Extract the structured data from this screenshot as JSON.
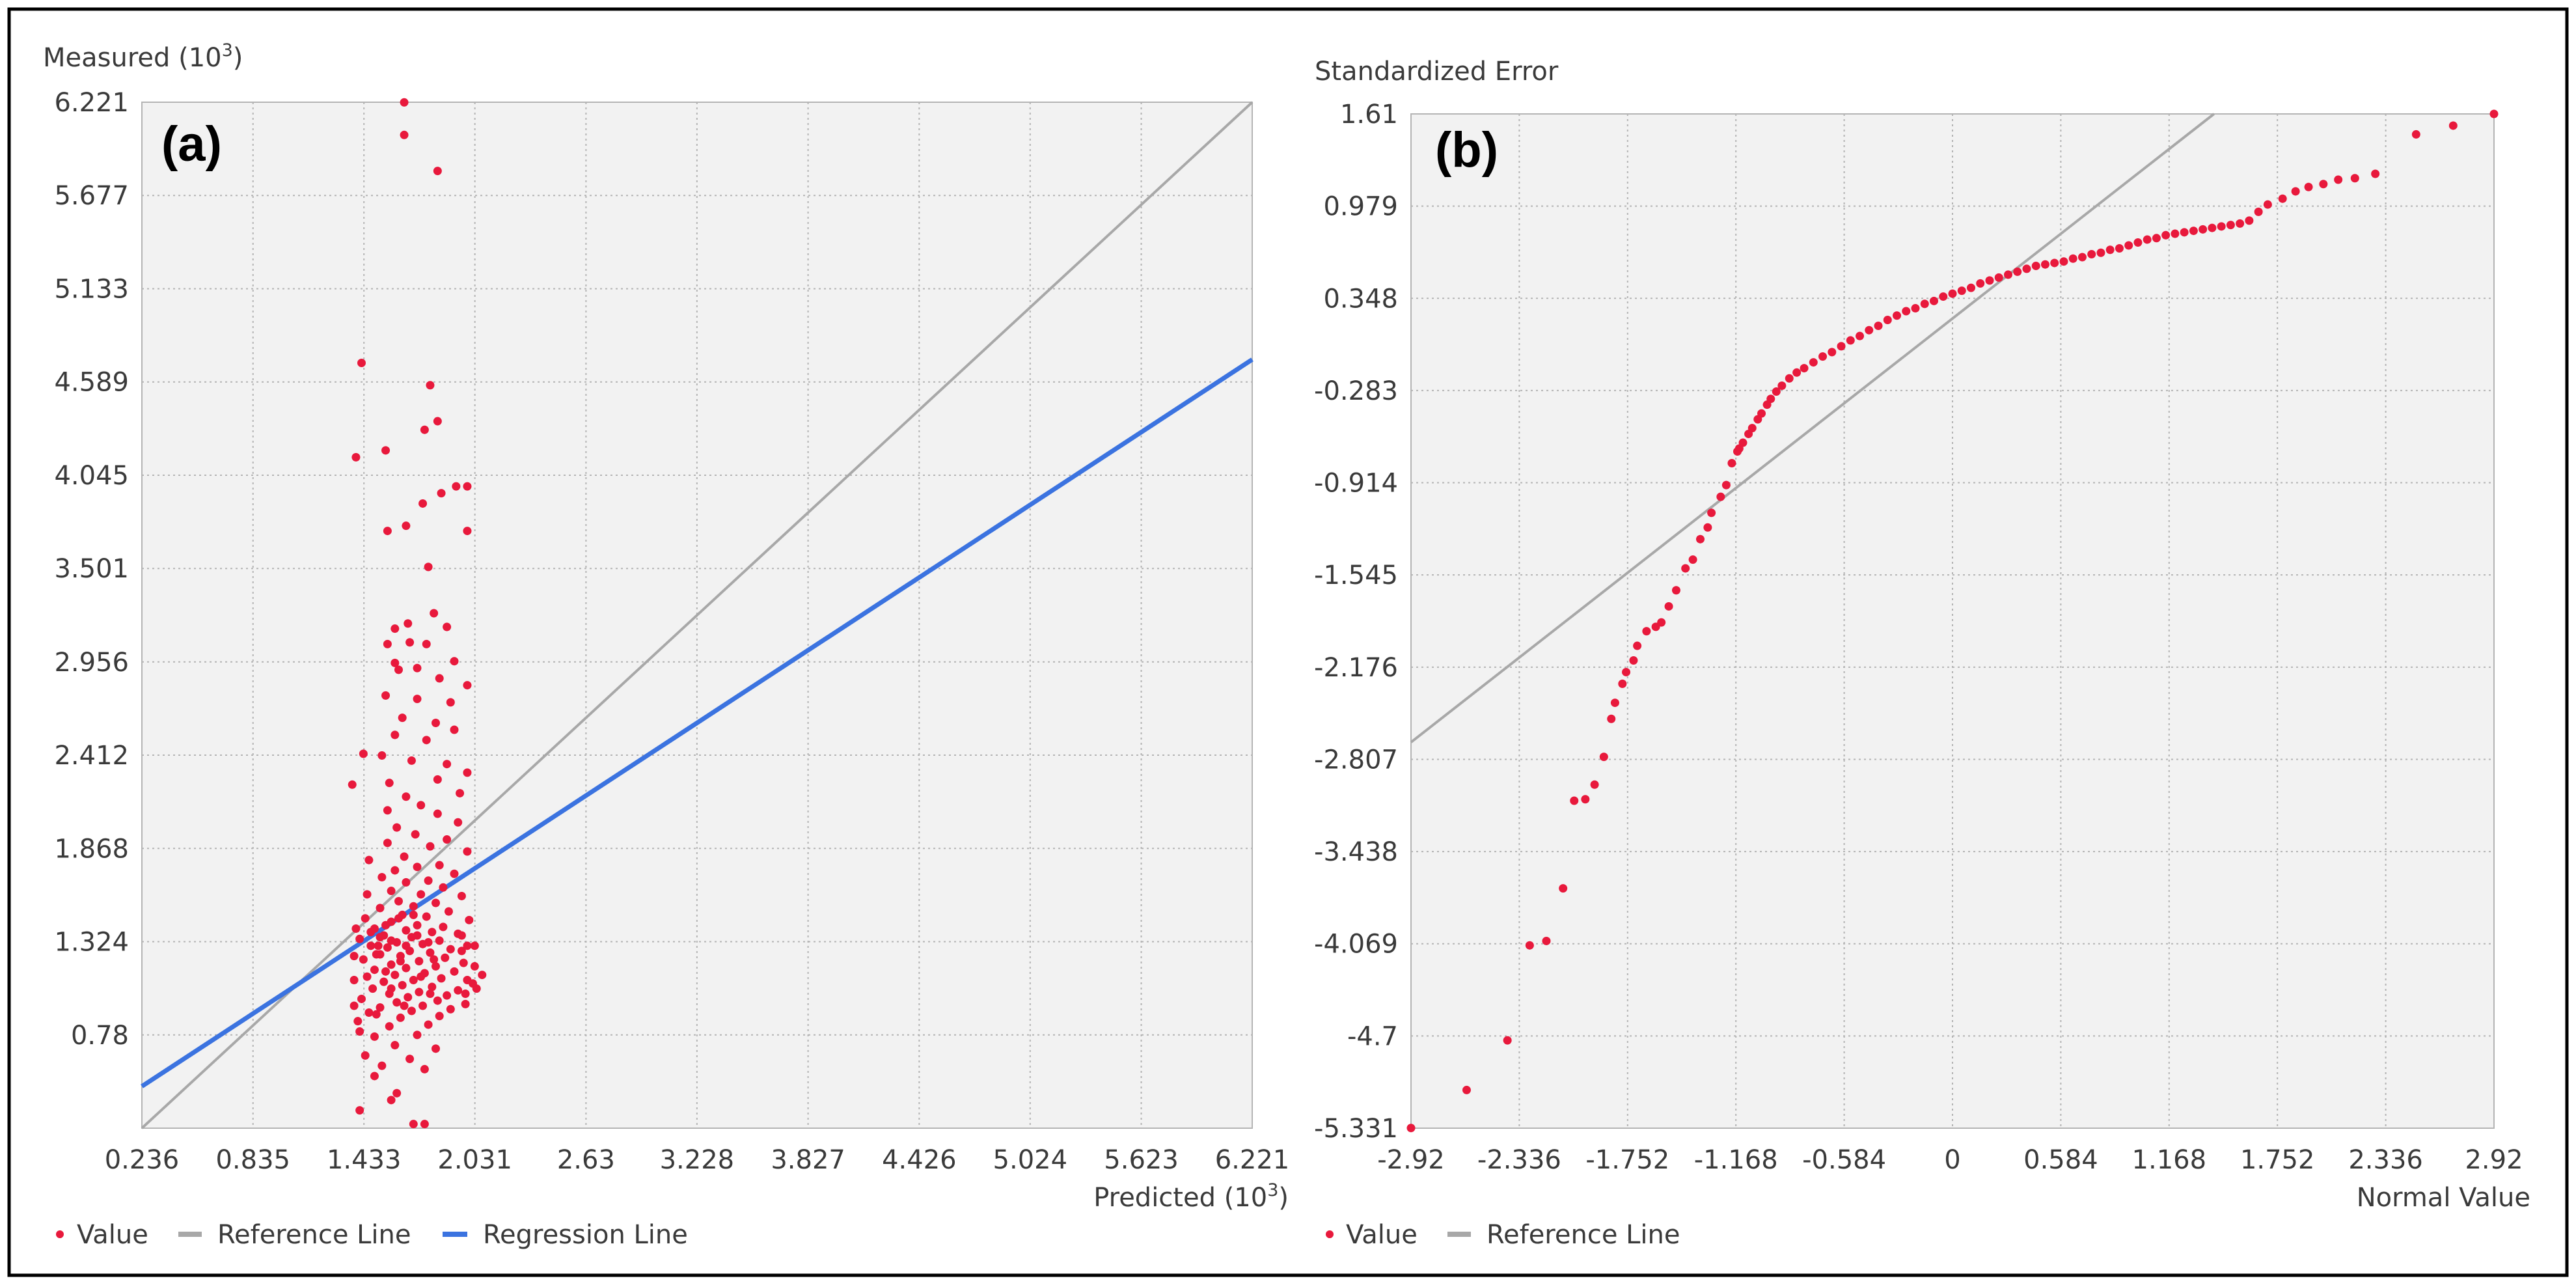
{
  "colors": {
    "point": "#e8193c",
    "reference_line": "#a8a8a8",
    "regression_line": "#3b73e0",
    "plot_background": "#f2f2f2",
    "grid": "#b4b4b4",
    "frame": "#000000"
  },
  "chart_data": [
    {
      "type": "scatter",
      "panel_label": "(a)",
      "ylabel": "Measured (10",
      "ylabel_exp": "3",
      "ylabel_close": ")",
      "xlabel": "Predicted (10",
      "xlabel_exp": "3",
      "xlabel_close": ")",
      "xticks": [
        "0.236",
        "0.835",
        "1.433",
        "2.031",
        "2.63",
        "3.228",
        "3.827",
        "4.426",
        "5.024",
        "5.623",
        "6.221"
      ],
      "yticks": [
        "0.78",
        "1.324",
        "1.868",
        "2.412",
        "2.956",
        "3.501",
        "4.045",
        "4.589",
        "5.133",
        "5.677",
        "6.221"
      ],
      "xlim": [
        0.236,
        6.221
      ],
      "ylim": [
        0.236,
        6.221
      ],
      "grid": true,
      "legend": [
        {
          "label": "Value",
          "marker": "point"
        },
        {
          "label": "Reference Line",
          "marker": "line",
          "color_key": "reference_line"
        },
        {
          "label": "Regression Line",
          "marker": "line",
          "color_key": "regression_line"
        }
      ],
      "legend_position": "bottom-left",
      "reference_line": {
        "x": [
          0.236,
          6.221
        ],
        "y": [
          0.236,
          6.221
        ]
      },
      "regression_line": {
        "x": [
          0.236,
          6.221
        ],
        "y": [
          0.48,
          4.72
        ]
      },
      "points": [
        [
          1.65,
          6.22
        ],
        [
          1.65,
          6.03
        ],
        [
          1.83,
          5.82
        ],
        [
          1.42,
          4.7
        ],
        [
          1.79,
          4.57
        ],
        [
          1.83,
          4.36
        ],
        [
          1.76,
          4.31
        ],
        [
          1.39,
          4.15
        ],
        [
          1.55,
          4.19
        ],
        [
          1.93,
          3.98
        ],
        [
          1.99,
          3.98
        ],
        [
          1.75,
          3.88
        ],
        [
          1.85,
          3.94
        ],
        [
          1.99,
          3.72
        ],
        [
          1.66,
          3.75
        ],
        [
          1.56,
          3.72
        ],
        [
          1.78,
          3.51
        ],
        [
          1.81,
          3.24
        ],
        [
          1.67,
          3.18
        ],
        [
          1.6,
          3.15
        ],
        [
          1.88,
          3.16
        ],
        [
          1.68,
          3.07
        ],
        [
          1.56,
          3.06
        ],
        [
          1.77,
          3.06
        ],
        [
          1.6,
          2.95
        ],
        [
          1.92,
          2.96
        ],
        [
          1.62,
          2.91
        ],
        [
          1.72,
          2.92
        ],
        [
          1.84,
          2.86
        ],
        [
          1.99,
          2.82
        ],
        [
          1.55,
          2.76
        ],
        [
          1.72,
          2.74
        ],
        [
          1.9,
          2.72
        ],
        [
          1.64,
          2.63
        ],
        [
          1.82,
          2.6
        ],
        [
          1.92,
          2.56
        ],
        [
          1.6,
          2.53
        ],
        [
          1.77,
          2.5
        ],
        [
          1.53,
          2.41
        ],
        [
          1.43,
          2.42
        ],
        [
          1.69,
          2.38
        ],
        [
          1.88,
          2.36
        ],
        [
          1.99,
          2.31
        ],
        [
          1.83,
          2.27
        ],
        [
          1.57,
          2.25
        ],
        [
          1.66,
          2.17
        ],
        [
          1.37,
          2.24
        ],
        [
          1.95,
          2.19
        ],
        [
          1.74,
          2.12
        ],
        [
          1.56,
          2.09
        ],
        [
          1.83,
          2.07
        ],
        [
          1.94,
          2.02
        ],
        [
          1.61,
          1.99
        ],
        [
          1.71,
          1.95
        ],
        [
          1.88,
          1.92
        ],
        [
          1.56,
          1.9
        ],
        [
          1.79,
          1.88
        ],
        [
          1.99,
          1.85
        ],
        [
          1.65,
          1.82
        ],
        [
          1.46,
          1.8
        ],
        [
          1.84,
          1.77
        ],
        [
          1.72,
          1.76
        ],
        [
          1.6,
          1.74
        ],
        [
          1.92,
          1.72
        ],
        [
          1.53,
          1.7
        ],
        [
          1.78,
          1.68
        ],
        [
          1.66,
          1.67
        ],
        [
          1.86,
          1.64
        ],
        [
          1.58,
          1.62
        ],
        [
          1.74,
          1.6
        ],
        [
          1.45,
          1.6
        ],
        [
          1.96,
          1.59
        ],
        [
          1.62,
          1.56
        ],
        [
          1.82,
          1.55
        ],
        [
          1.7,
          1.53
        ],
        [
          1.52,
          1.52
        ],
        [
          1.89,
          1.5
        ],
        [
          1.64,
          1.48
        ],
        [
          1.77,
          1.47
        ],
        [
          1.44,
          1.46
        ],
        [
          2.0,
          1.45
        ],
        [
          1.58,
          1.44
        ],
        [
          1.72,
          1.42
        ],
        [
          1.86,
          1.41
        ],
        [
          1.49,
          1.4
        ],
        [
          1.66,
          1.39
        ],
        [
          1.8,
          1.38
        ],
        [
          1.94,
          1.37
        ],
        [
          1.54,
          1.36
        ],
        [
          1.69,
          1.35
        ],
        [
          1.41,
          1.34
        ],
        [
          1.84,
          1.33
        ],
        [
          1.61,
          1.32
        ],
        [
          1.75,
          1.31
        ],
        [
          1.99,
          1.3
        ],
        [
          1.47,
          1.3
        ],
        [
          1.56,
          1.29
        ],
        [
          1.9,
          1.28
        ],
        [
          1.68,
          1.27
        ],
        [
          1.79,
          1.26
        ],
        [
          1.52,
          1.25
        ],
        [
          1.63,
          1.24
        ],
        [
          1.87,
          1.23
        ],
        [
          1.43,
          1.22
        ],
        [
          1.73,
          1.21
        ],
        [
          1.97,
          1.2
        ],
        [
          1.58,
          1.19
        ],
        [
          1.82,
          1.18
        ],
        [
          1.66,
          1.17
        ],
        [
          1.49,
          1.16
        ],
        [
          1.92,
          1.15
        ],
        [
          1.76,
          1.14
        ],
        [
          1.6,
          1.13
        ],
        [
          1.45,
          1.12
        ],
        [
          1.85,
          1.11
        ],
        [
          1.7,
          1.1
        ],
        [
          1.54,
          1.09
        ],
        [
          2.02,
          1.08
        ],
        [
          1.64,
          1.07
        ],
        [
          1.8,
          1.06
        ],
        [
          1.48,
          1.05
        ],
        [
          1.94,
          1.04
        ],
        [
          1.73,
          1.03
        ],
        [
          1.57,
          1.02
        ],
        [
          1.88,
          1.01
        ],
        [
          1.67,
          1.0
        ],
        [
          1.42,
          0.99
        ],
        [
          1.83,
          0.98
        ],
        [
          1.61,
          0.97
        ],
        [
          1.98,
          0.96
        ],
        [
          1.75,
          0.95
        ],
        [
          1.52,
          0.94
        ],
        [
          1.9,
          0.93
        ],
        [
          1.69,
          0.92
        ],
        [
          1.46,
          0.91
        ],
        [
          1.84,
          0.89
        ],
        [
          1.63,
          0.88
        ],
        [
          1.4,
          0.86
        ],
        [
          1.78,
          0.84
        ],
        [
          1.57,
          0.83
        ],
        [
          1.41,
          0.8
        ],
        [
          1.72,
          0.78
        ],
        [
          1.49,
          0.77
        ],
        [
          1.6,
          0.72
        ],
        [
          1.82,
          0.7
        ],
        [
          1.44,
          0.66
        ],
        [
          1.68,
          0.64
        ],
        [
          1.53,
          0.6
        ],
        [
          1.76,
          0.58
        ],
        [
          1.49,
          0.54
        ],
        [
          1.61,
          0.44
        ],
        [
          1.58,
          0.4
        ],
        [
          1.41,
          0.34
        ],
        [
          1.7,
          0.26
        ],
        [
          1.76,
          0.26
        ],
        [
          1.38,
          1.1
        ],
        [
          1.38,
          0.95
        ],
        [
          1.38,
          1.24
        ],
        [
          1.39,
          1.4
        ],
        [
          1.96,
          1.36
        ],
        [
          2.03,
          1.3
        ],
        [
          1.96,
          1.27
        ],
        [
          2.03,
          1.18
        ],
        [
          2.07,
          1.13
        ],
        [
          1.99,
          1.1
        ],
        [
          1.98,
          1.02
        ],
        [
          2.04,
          1.05
        ],
        [
          1.5,
          1.25
        ],
        [
          1.51,
          1.3
        ],
        [
          1.52,
          1.35
        ],
        [
          1.47,
          1.38
        ],
        [
          1.55,
          1.42
        ],
        [
          1.62,
          1.46
        ],
        [
          1.7,
          1.48
        ],
        [
          1.58,
          1.33
        ],
        [
          1.72,
          1.36
        ],
        [
          1.66,
          1.3
        ],
        [
          1.78,
          1.32
        ],
        [
          1.63,
          1.21
        ],
        [
          1.81,
          1.22
        ],
        [
          1.55,
          1.15
        ],
        [
          1.74,
          1.12
        ],
        [
          1.58,
          1.05
        ],
        [
          1.79,
          1.02
        ],
        [
          1.65,
          0.95
        ],
        [
          1.5,
          0.9
        ]
      ]
    },
    {
      "type": "scatter",
      "panel_label": "(b)",
      "ylabel": "Standardized Error",
      "xlabel": "Normal Value",
      "xticks": [
        "-2.92",
        "-2.336",
        "-1.752",
        "-1.168",
        "-0.584",
        "0",
        "0.584",
        "1.168",
        "1.752",
        "2.336",
        "2.92"
      ],
      "yticks": [
        "1.61",
        "0.979",
        "0.348",
        "-0.283",
        "-0.914",
        "-1.545",
        "-2.176",
        "-2.807",
        "-3.438",
        "-4.069",
        "-4.7",
        "-5.331"
      ],
      "xlim": [
        -2.92,
        2.92
      ],
      "ylim": [
        -5.331,
        1.61
      ],
      "grid": true,
      "legend": [
        {
          "label": "Value",
          "marker": "point"
        },
        {
          "label": "Reference Line",
          "marker": "line",
          "color_key": "reference_line"
        }
      ],
      "legend_position": "bottom-left",
      "reference_line": {
        "x": [
          -2.92,
          1.41
        ],
        "y": [
          -2.69,
          1.61
        ]
      },
      "points": [
        [
          -2.92,
          -5.33
        ],
        [
          -2.62,
          -5.07
        ],
        [
          -2.4,
          -4.73
        ],
        [
          -2.28,
          -4.08
        ],
        [
          -2.19,
          -4.05
        ],
        [
          -2.1,
          -3.69
        ],
        [
          -2.04,
          -3.09
        ],
        [
          -1.98,
          -3.08
        ],
        [
          -1.93,
          -2.98
        ],
        [
          -1.88,
          -2.79
        ],
        [
          -1.84,
          -2.53
        ],
        [
          -1.82,
          -2.42
        ],
        [
          -1.78,
          -2.29
        ],
        [
          -1.76,
          -2.21
        ],
        [
          -1.72,
          -2.13
        ],
        [
          -1.7,
          -2.03
        ],
        [
          -1.65,
          -1.93
        ],
        [
          -1.6,
          -1.9
        ],
        [
          -1.57,
          -1.87
        ],
        [
          -1.53,
          -1.76
        ],
        [
          -1.49,
          -1.65
        ],
        [
          -1.44,
          -1.5
        ],
        [
          -1.4,
          -1.44
        ],
        [
          -1.36,
          -1.3
        ],
        [
          -1.32,
          -1.22
        ],
        [
          -1.3,
          -1.12
        ],
        [
          -1.25,
          -1.01
        ],
        [
          -1.22,
          -0.93
        ],
        [
          -1.19,
          -0.78
        ],
        [
          -1.15,
          -0.68
        ],
        [
          -1.1,
          -0.58
        ],
        [
          -1.05,
          -0.48
        ],
        [
          -1.0,
          -0.38
        ],
        [
          -0.95,
          -0.29
        ],
        [
          -0.88,
          -0.2
        ],
        [
          -0.8,
          -0.13
        ],
        [
          -0.7,
          -0.05
        ],
        [
          -0.6,
          0.02
        ],
        [
          -0.5,
          0.09
        ],
        [
          -0.4,
          0.16
        ],
        [
          -0.3,
          0.23
        ],
        [
          -0.2,
          0.28
        ],
        [
          -0.1,
          0.33
        ],
        [
          0.0,
          0.38
        ],
        [
          0.1,
          0.42
        ],
        [
          0.2,
          0.47
        ],
        [
          0.3,
          0.51
        ],
        [
          0.4,
          0.55
        ],
        [
          0.5,
          0.58
        ],
        [
          0.6,
          0.6
        ],
        [
          0.7,
          0.63
        ],
        [
          0.8,
          0.66
        ],
        [
          0.9,
          0.69
        ],
        [
          1.0,
          0.73
        ],
        [
          1.1,
          0.76
        ],
        [
          1.2,
          0.79
        ],
        [
          1.3,
          0.81
        ],
        [
          1.4,
          0.83
        ],
        [
          1.5,
          0.85
        ],
        [
          1.6,
          0.88
        ],
        [
          1.65,
          0.94
        ],
        [
          1.7,
          0.99
        ],
        [
          1.78,
          1.03
        ],
        [
          1.85,
          1.08
        ],
        [
          1.92,
          1.11
        ],
        [
          2.0,
          1.13
        ],
        [
          2.08,
          1.16
        ],
        [
          2.17,
          1.17
        ],
        [
          2.28,
          1.2
        ],
        [
          2.5,
          1.47
        ],
        [
          2.7,
          1.53
        ],
        [
          2.92,
          1.61
        ],
        [
          -1.16,
          -0.7
        ],
        [
          -1.13,
          -0.64
        ],
        [
          -1.08,
          -0.54
        ],
        [
          -1.03,
          -0.44
        ],
        [
          -0.98,
          -0.34
        ],
        [
          -0.92,
          -0.25
        ],
        [
          -0.84,
          -0.16
        ],
        [
          -0.75,
          -0.09
        ],
        [
          -0.65,
          -0.02
        ],
        [
          -0.55,
          0.06
        ],
        [
          -0.45,
          0.13
        ],
        [
          -0.35,
          0.2
        ],
        [
          -0.25,
          0.26
        ],
        [
          -0.15,
          0.31
        ],
        [
          -0.05,
          0.36
        ],
        [
          0.05,
          0.4
        ],
        [
          0.15,
          0.45
        ],
        [
          0.25,
          0.49
        ],
        [
          0.35,
          0.53
        ],
        [
          0.45,
          0.57
        ],
        [
          0.55,
          0.59
        ],
        [
          0.65,
          0.62
        ],
        [
          0.75,
          0.65
        ],
        [
          0.85,
          0.68
        ],
        [
          0.95,
          0.71
        ],
        [
          1.05,
          0.75
        ],
        [
          1.15,
          0.78
        ],
        [
          1.25,
          0.8
        ],
        [
          1.35,
          0.82
        ],
        [
          1.45,
          0.84
        ],
        [
          1.55,
          0.86
        ]
      ]
    }
  ]
}
